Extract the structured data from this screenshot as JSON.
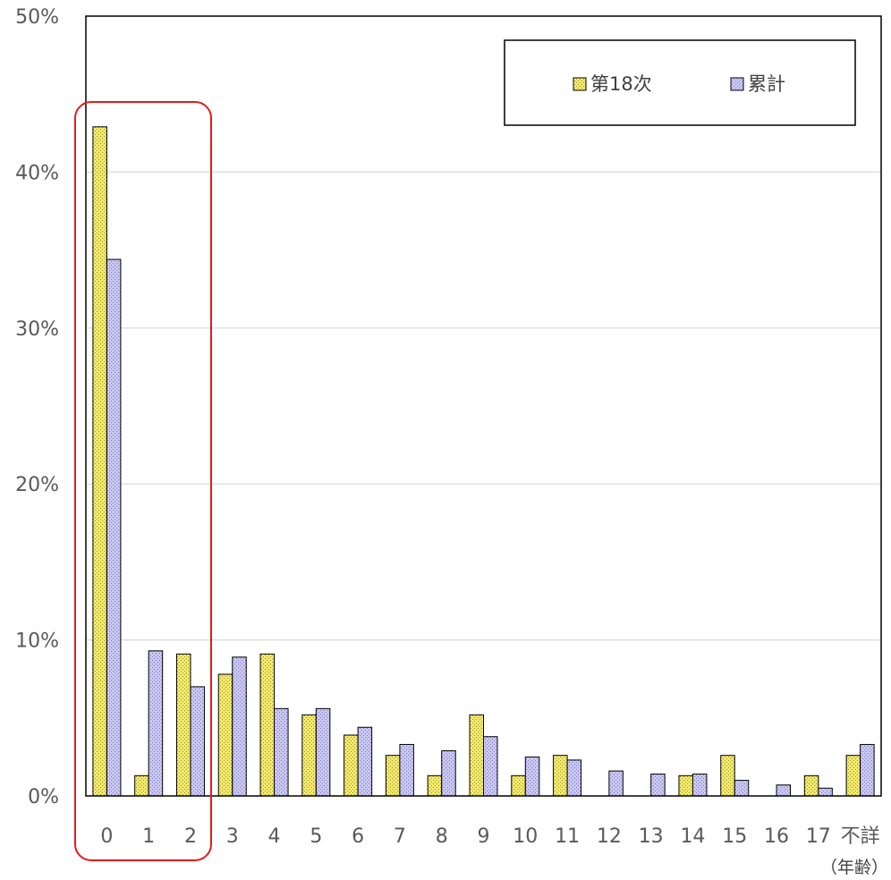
{
  "chart_data": {
    "type": "bar",
    "categories": [
      "0",
      "1",
      "2",
      "3",
      "4",
      "5",
      "6",
      "7",
      "8",
      "9",
      "10",
      "11",
      "12",
      "13",
      "14",
      "15",
      "16",
      "17",
      "不詳"
    ],
    "series": [
      {
        "name": "第18次",
        "values": [
          42.9,
          1.3,
          9.1,
          7.8,
          9.1,
          5.2,
          3.9,
          2.6,
          1.3,
          5.2,
          1.3,
          2.6,
          0.0,
          0.0,
          1.3,
          2.6,
          0.0,
          1.3,
          2.6
        ]
      },
      {
        "name": "累計",
        "values": [
          34.4,
          9.3,
          7.0,
          8.9,
          5.6,
          5.6,
          4.4,
          3.3,
          2.9,
          3.8,
          2.5,
          2.3,
          1.6,
          1.4,
          1.4,
          1.0,
          0.7,
          0.5,
          3.3
        ]
      }
    ],
    "y_tick_labels": [
      "0%",
      "10%",
      "20%",
      "30%",
      "40%",
      "50%"
    ],
    "ylim": [
      0,
      50
    ],
    "xlabel": "（年齢）",
    "grid": true,
    "legend_position": "top-right",
    "highlight_box_categories": [
      "0",
      "1",
      "2"
    ]
  },
  "colors": {
    "series1_fill": "#f2e96c",
    "series2_fill": "#c9c7f2",
    "bar_stroke": "#000000",
    "gridline": "#d9d9d9",
    "axis": "#000000",
    "highlight": "#e31b1b"
  }
}
